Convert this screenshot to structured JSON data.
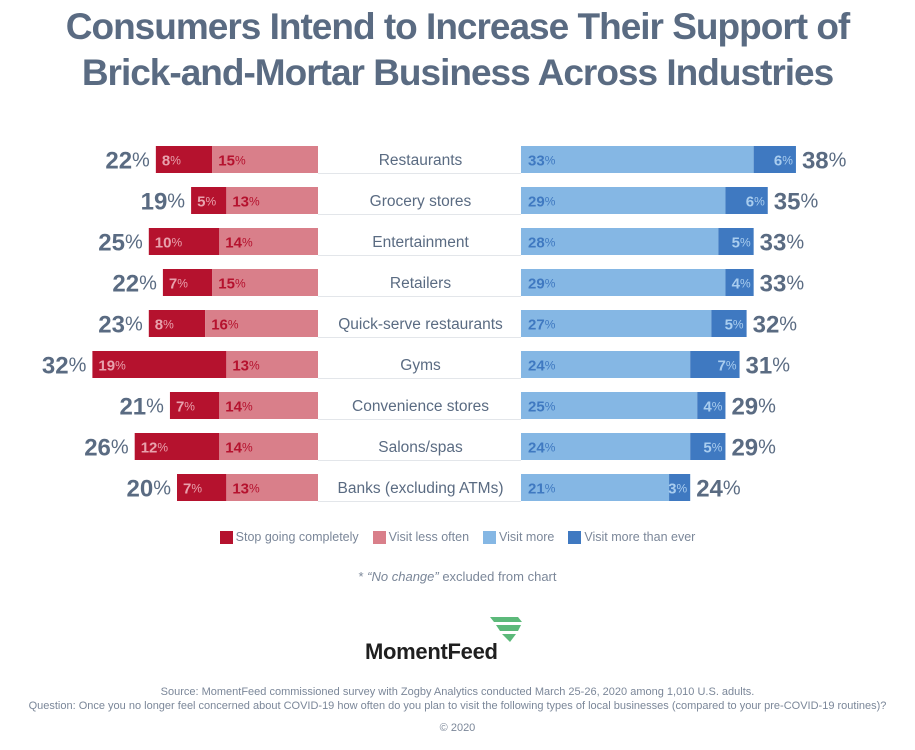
{
  "title": {
    "line1": "Consumers Intend to Increase Their Support of",
    "line2": "Brick-and-Mortar Business Across Industries"
  },
  "colors": {
    "stop_going": "#b5122e",
    "visit_less": "#d97f8a",
    "visit_more": "#85b7e4",
    "visit_more_than_ever": "#3f79c1",
    "total_text": "#5a6b82",
    "category_text": "#5a6b82",
    "separator": "#e3e6ea"
  },
  "chart_data": {
    "type": "bar",
    "subtype": "diverging-stacked-horizontal",
    "title": "Consumers Intend to Increase Their Support of Brick-and-Mortar Business Across Industries",
    "unit": "%",
    "categories": [
      "Restaurants",
      "Grocery stores",
      "Entertainment",
      "Retailers",
      "Quick-serve restaurants",
      "Gyms",
      "Convenience stores",
      "Salons/spas",
      "Banks (excluding ATMs)"
    ],
    "series": [
      {
        "name": "Stop going completely",
        "side": "left",
        "values": [
          8,
          5,
          10,
          7,
          8,
          19,
          7,
          12,
          7
        ]
      },
      {
        "name": "Visit less often",
        "side": "left",
        "values": [
          15,
          13,
          14,
          15,
          16,
          13,
          14,
          14,
          13
        ]
      },
      {
        "name": "Visit more",
        "side": "right",
        "values": [
          33,
          29,
          28,
          29,
          27,
          24,
          25,
          24,
          21
        ]
      },
      {
        "name": "Visit more than ever",
        "side": "right",
        "values": [
          6,
          6,
          5,
          4,
          5,
          7,
          4,
          5,
          3
        ]
      }
    ],
    "left_totals": [
      22,
      19,
      25,
      22,
      23,
      32,
      21,
      26,
      20
    ],
    "right_totals": [
      38,
      35,
      33,
      33,
      32,
      31,
      29,
      29,
      24
    ],
    "legend_position": "bottom",
    "note": "\"No change\" excluded from chart"
  },
  "legend": {
    "items": [
      {
        "label": "Stop going completely",
        "color": "#b5122e"
      },
      {
        "label": "Visit less often",
        "color": "#d97f8a"
      },
      {
        "label": "Visit more",
        "color": "#85b7e4"
      },
      {
        "label": "Visit more than ever",
        "color": "#3f79c1"
      }
    ]
  },
  "footnote": {
    "prefix": "* ",
    "italic": "“No change”",
    "rest": " excluded from chart"
  },
  "logo": {
    "text": "MomentFeed",
    "mark_color": "#5cb97a"
  },
  "source": {
    "line1": "Source: MomentFeed commissioned survey with Zogby Analytics conducted March 25-26, 2020 among 1,010 U.S. adults.",
    "line2": "Question: Once you no longer feel concerned about COVID-19 how often do you plan to visit the following types of local businesses (compared to your pre-COVID-19 routines)?"
  },
  "copyright": "© 2020"
}
